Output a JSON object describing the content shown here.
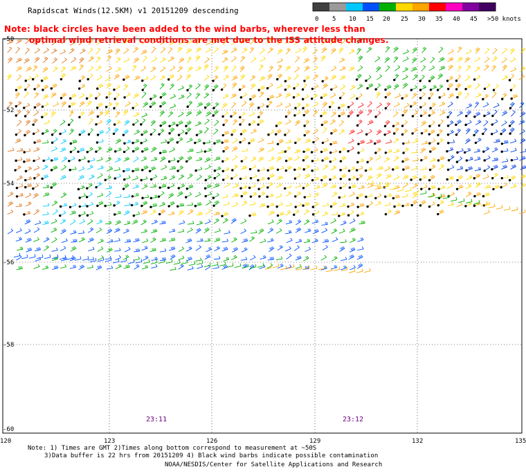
{
  "title": "Rapidscat Winds(12.5KM) v1 20151209 descending",
  "note": {
    "line1": "Note: black circles have been added to the wind barbs, wherever less than",
    "line2": "optimal wind retrieval conditions are met due to the ISS attitude changes."
  },
  "color_scale": {
    "labels": [
      "0",
      "5",
      "10",
      "15",
      "20",
      "25",
      "30",
      "35",
      "40",
      "45",
      ">50 knots"
    ],
    "colors": [
      "#404040",
      "#9a9a9a",
      "#00c8ff",
      "#0050ff",
      "#00b000",
      "#ffd800",
      "#ffa500",
      "#ff0000",
      "#ff00c0",
      "#8000a0",
      "#400060"
    ]
  },
  "map": {
    "lat_labels": [
      "-50",
      "-52",
      "-54",
      "-56",
      "-58",
      "-60"
    ],
    "lon_labels": [
      "120",
      "123",
      "126",
      "129",
      "132",
      "135"
    ],
    "time_labels": [
      "23:11",
      "23:12"
    ]
  },
  "footer": {
    "line1": "Note: 1) Times are GMT 2)Times along bottom correspond to measurement at ~50S",
    "line2": "3)Data buffer is 22 hrs from 20151209 4) Black wind barbs indicate possible contamination",
    "line3": "NOAA/NESDIS/Center for Satellite Applications and Research"
  }
}
